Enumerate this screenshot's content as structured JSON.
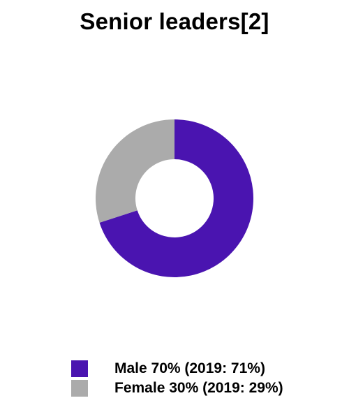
{
  "chart_data": {
    "type": "pie",
    "title": "Senior leaders[2]",
    "donut": true,
    "categories": [
      "Male",
      "Female"
    ],
    "values": [
      70,
      30
    ],
    "colors": [
      "#4A14B0",
      "#ABABAB"
    ],
    "legend_labels": [
      "Male 70% (2019: 71%)",
      "Female 30% (2019: 29%)"
    ],
    "legend_position": "bottom"
  }
}
